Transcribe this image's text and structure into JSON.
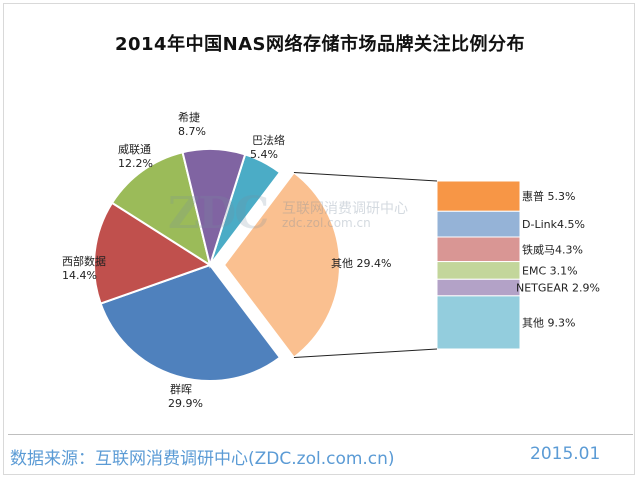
{
  "title": "2014年中国NAS网络存储市场品牌关注比例分布",
  "chart_data": {
    "type": "pie",
    "title": "2014年中国NAS网络存储市场品牌关注比例分布",
    "slices": [
      {
        "name": "巴法络",
        "value": 5.4,
        "label": "5.4%",
        "color": "#4bacc6"
      },
      {
        "name": "其他",
        "value": 29.4,
        "label": "29.4%",
        "color": "#fac090"
      },
      {
        "name": "群晖",
        "value": 29.9,
        "label": "29.9%",
        "color": "#4f81bd"
      },
      {
        "name": "西部数据",
        "value": 14.4,
        "label": "14.4%",
        "color": "#c0504d"
      },
      {
        "name": "威联通",
        "value": 12.2,
        "label": "12.2%",
        "color": "#9bbb59"
      },
      {
        "name": "希捷",
        "value": 8.7,
        "label": "8.7%",
        "color": "#8064a2"
      }
    ],
    "breakdown_of": "其他",
    "breakdown": [
      {
        "name": "惠普",
        "value": 5.3,
        "label": "惠普 5.3%",
        "color": "#f79646"
      },
      {
        "name": "D-Link",
        "value": 4.5,
        "label": "D-Link4.5%",
        "color": "#95b3d7"
      },
      {
        "name": "铁威马",
        "value": 4.3,
        "label": "铁威马4.3%",
        "color": "#d99694"
      },
      {
        "name": "EMC",
        "value": 3.1,
        "label": "EMC 3.1%",
        "color": "#c3d69b"
      },
      {
        "name": "NETGEAR",
        "value": 2.9,
        "label": "NETGEAR 2.9%",
        "color": "#b3a2c7"
      },
      {
        "name": "其他",
        "value": 9.3,
        "label": "其他 9.3%",
        "color": "#93cddd"
      }
    ]
  },
  "watermark": {
    "logo": "ZDC",
    "line1": "互联网消费调研中心",
    "line2": "zdc.zol.com.cn"
  },
  "footer": {
    "source": "数据来源：互联网消费调研中心(ZDC.zol.com.cn)",
    "date": "2015.01"
  }
}
